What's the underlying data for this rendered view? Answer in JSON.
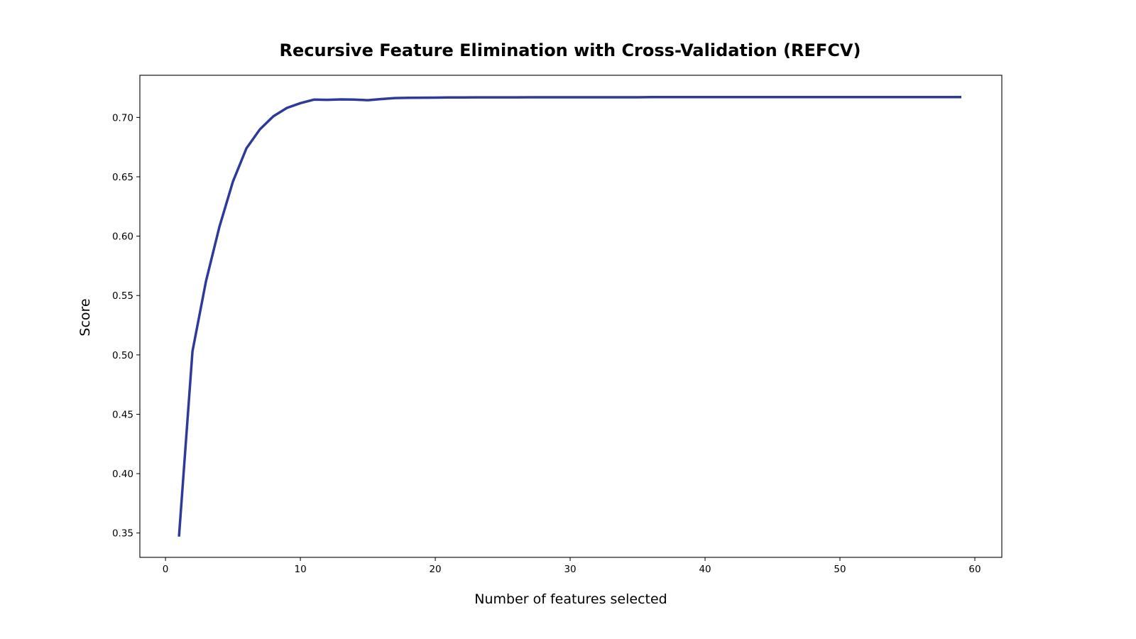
{
  "chart_data": {
    "type": "line",
    "title": "Recursive Feature Elimination with Cross-Validation (REFCV)",
    "xlabel": "Number of features selected",
    "ylabel": "Score",
    "xlim": [
      -1.9,
      62
    ],
    "ylim": [
      0.3295,
      0.7355
    ],
    "xticks": [
      0,
      10,
      20,
      30,
      40,
      50,
      60
    ],
    "yticks": [
      0.35,
      0.4,
      0.45,
      0.5,
      0.55,
      0.6,
      0.65,
      0.7
    ],
    "grid": false,
    "colors": {
      "line": "#2e3a9a"
    },
    "series": [
      {
        "x": [
          1,
          2,
          3,
          4,
          5,
          6,
          7,
          8,
          9,
          10,
          11,
          12,
          13,
          14,
          15,
          16,
          17,
          18,
          19,
          20,
          21,
          22,
          23,
          24,
          25,
          26,
          27,
          28,
          29,
          30,
          31,
          32,
          33,
          34,
          35,
          36,
          37,
          38,
          39,
          40,
          41,
          42,
          43,
          44,
          45,
          46,
          47,
          48,
          49,
          50,
          51,
          52,
          53,
          54,
          55,
          56,
          57,
          58,
          59
        ],
        "values": [
          0.347,
          0.503,
          0.562,
          0.608,
          0.646,
          0.674,
          0.69,
          0.701,
          0.708,
          0.712,
          0.715,
          0.7148,
          0.7152,
          0.715,
          0.7145,
          0.7155,
          0.7163,
          0.7165,
          0.7166,
          0.7167,
          0.7168,
          0.7168,
          0.7169,
          0.7169,
          0.7169,
          0.7169,
          0.717,
          0.717,
          0.717,
          0.717,
          0.717,
          0.717,
          0.717,
          0.717,
          0.717,
          0.7171,
          0.7171,
          0.7171,
          0.7171,
          0.7171,
          0.7171,
          0.7171,
          0.7171,
          0.7171,
          0.7171,
          0.7171,
          0.7171,
          0.7171,
          0.7171,
          0.7171,
          0.7171,
          0.7171,
          0.7171,
          0.7171,
          0.7171,
          0.7171,
          0.7171,
          0.7171,
          0.7171
        ]
      }
    ]
  }
}
